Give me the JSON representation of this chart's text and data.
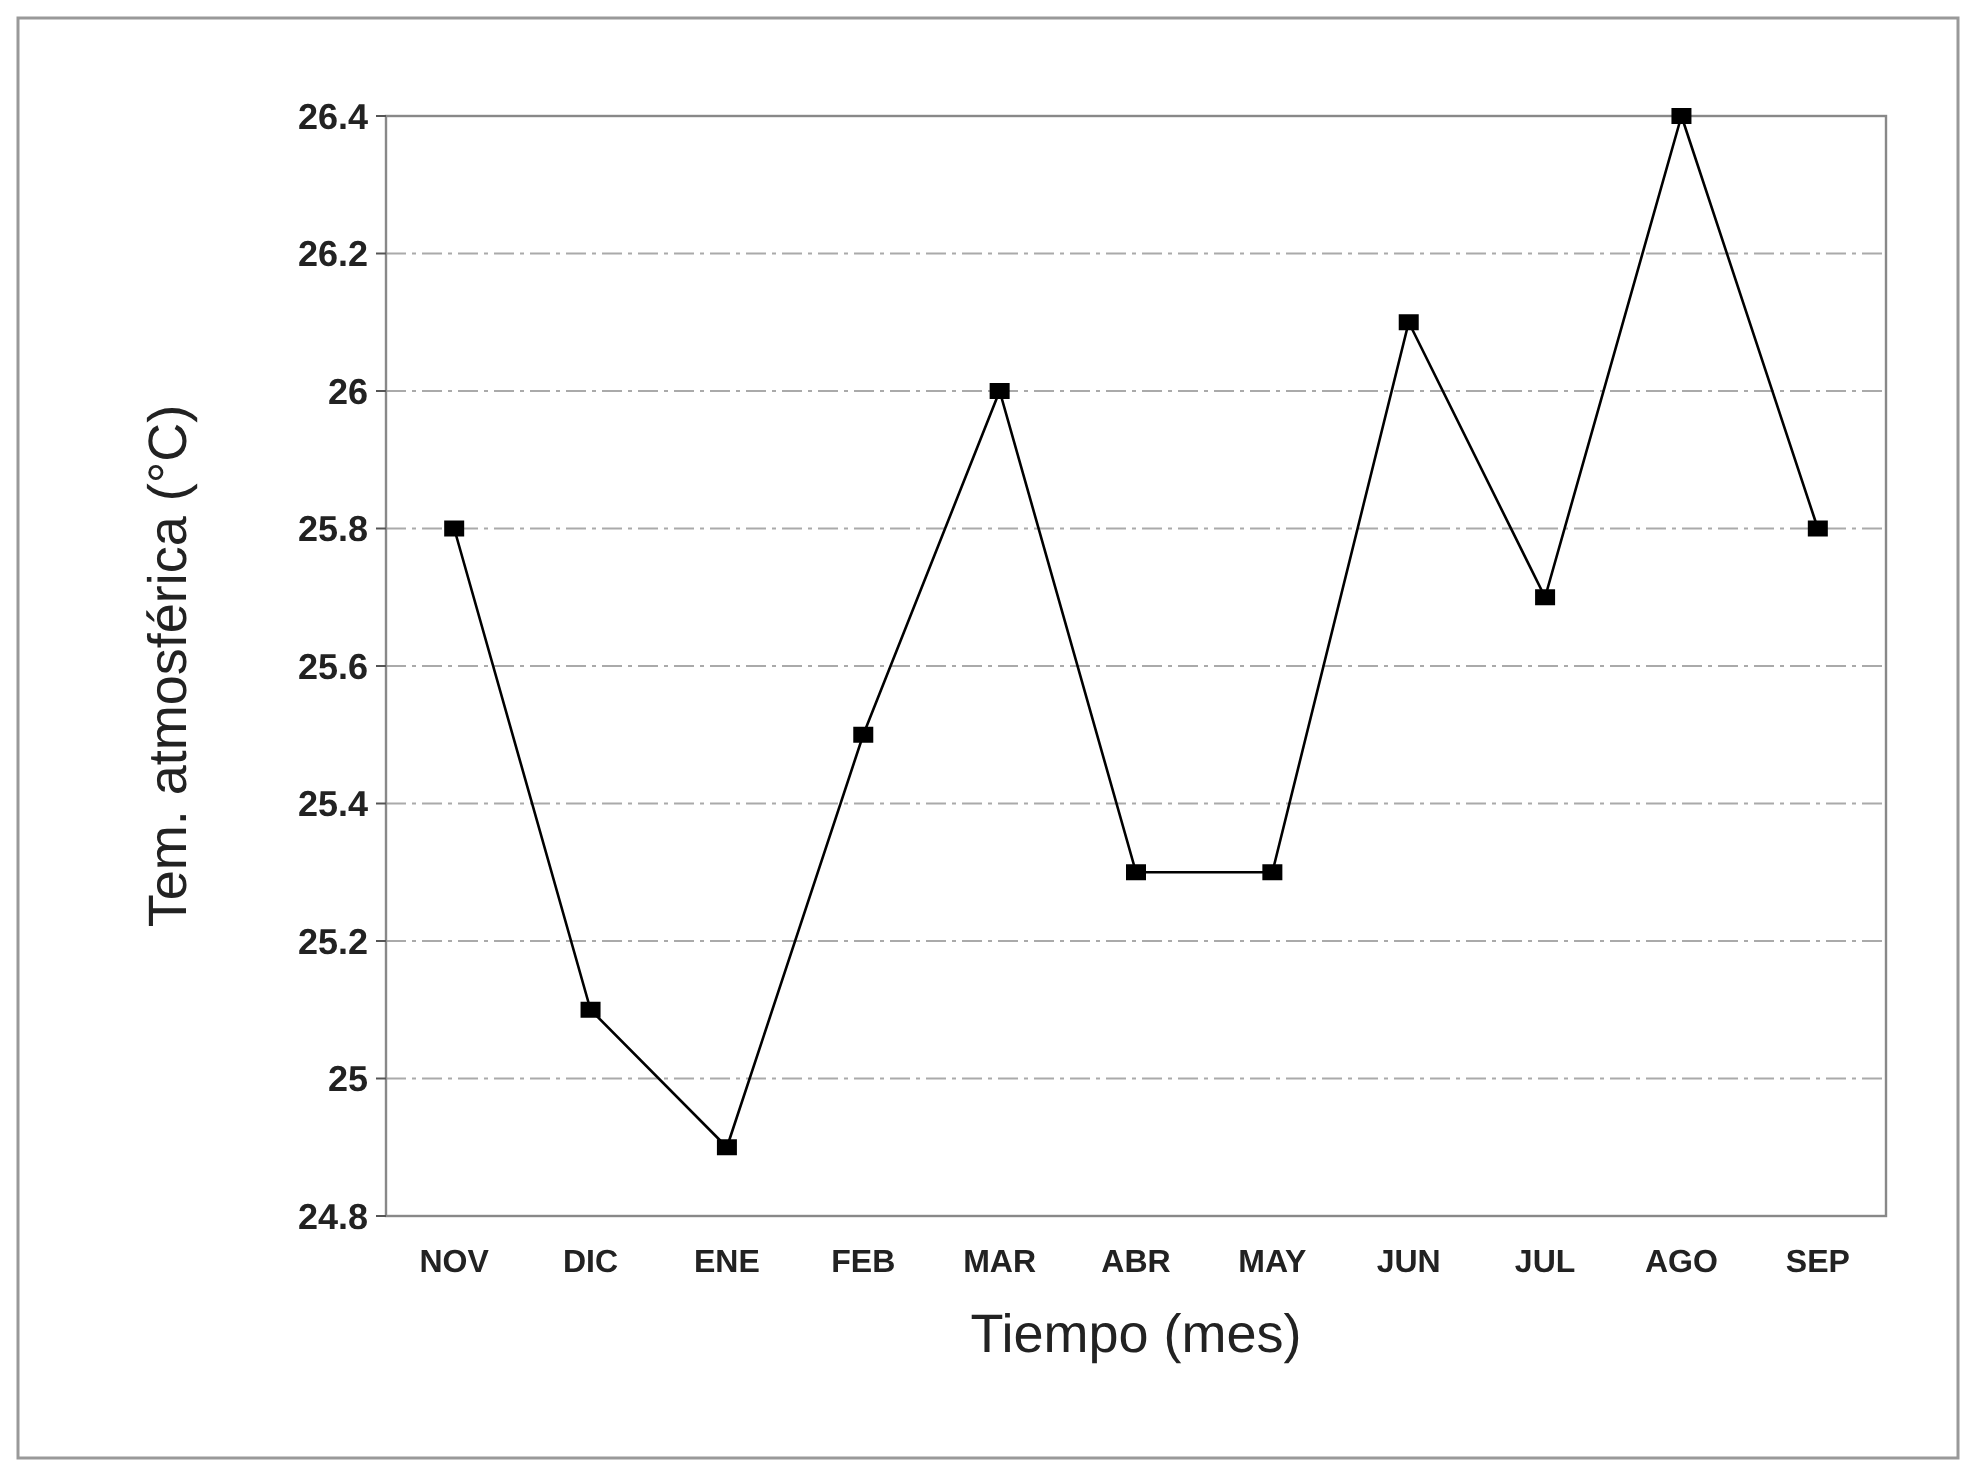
{
  "chart_data": {
    "type": "line",
    "xlabel": "Tiempo (mes)",
    "ylabel": "Tem. atmosférica (°C)",
    "categories": [
      "NOV",
      "DIC",
      "ENE",
      "FEB",
      "MAR",
      "ABR",
      "MAY",
      "JUN",
      "JUL",
      "AGO",
      "SEP"
    ],
    "series": [
      {
        "color": "#000000",
        "values": [
          25.8,
          25.1,
          24.9,
          25.5,
          26.0,
          25.3,
          25.3,
          26.1,
          25.7,
          26.4,
          25.8
        ]
      }
    ],
    "ylim": [
      24.8,
      26.4
    ],
    "yticks": [
      24.8,
      25,
      25.2,
      25.4,
      25.6,
      25.8,
      26,
      26.2,
      26.4
    ],
    "grid": "y",
    "marker": "square",
    "line_style": "solid"
  }
}
